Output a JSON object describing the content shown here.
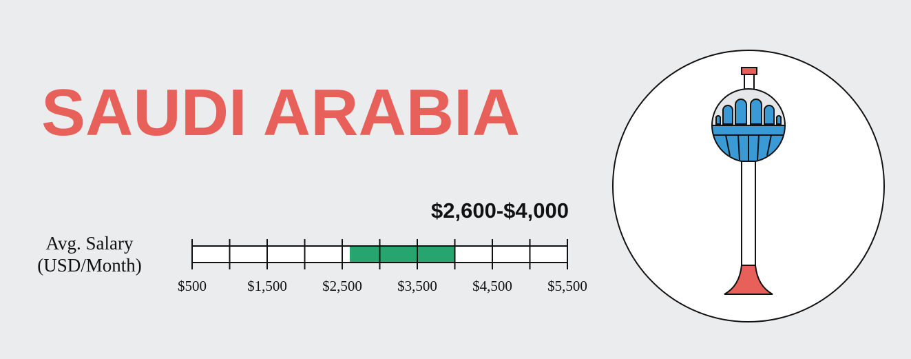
{
  "chart_data": {
    "type": "range",
    "title": "SAUDI ARABIA",
    "axis_label": [
      "Avg. Salary",
      "(USD/Month)"
    ],
    "values": [
      2600,
      4000
    ],
    "value_label": "$2,600-$4,000",
    "color": "#27a56f",
    "xlim": [
      500,
      5500
    ],
    "xticks": [
      {
        "value": 500,
        "label": "$500"
      },
      {
        "value": 1500,
        "label": "$1,500"
      },
      {
        "value": 2500,
        "label": "$2,500"
      },
      {
        "value": 3500,
        "label": "$3,500"
      },
      {
        "value": 4500,
        "label": "$4,500"
      },
      {
        "value": 5500,
        "label": "$5,500"
      }
    ],
    "minor_xticks": [
      1000,
      2000,
      3000,
      4000,
      5000
    ]
  }
}
